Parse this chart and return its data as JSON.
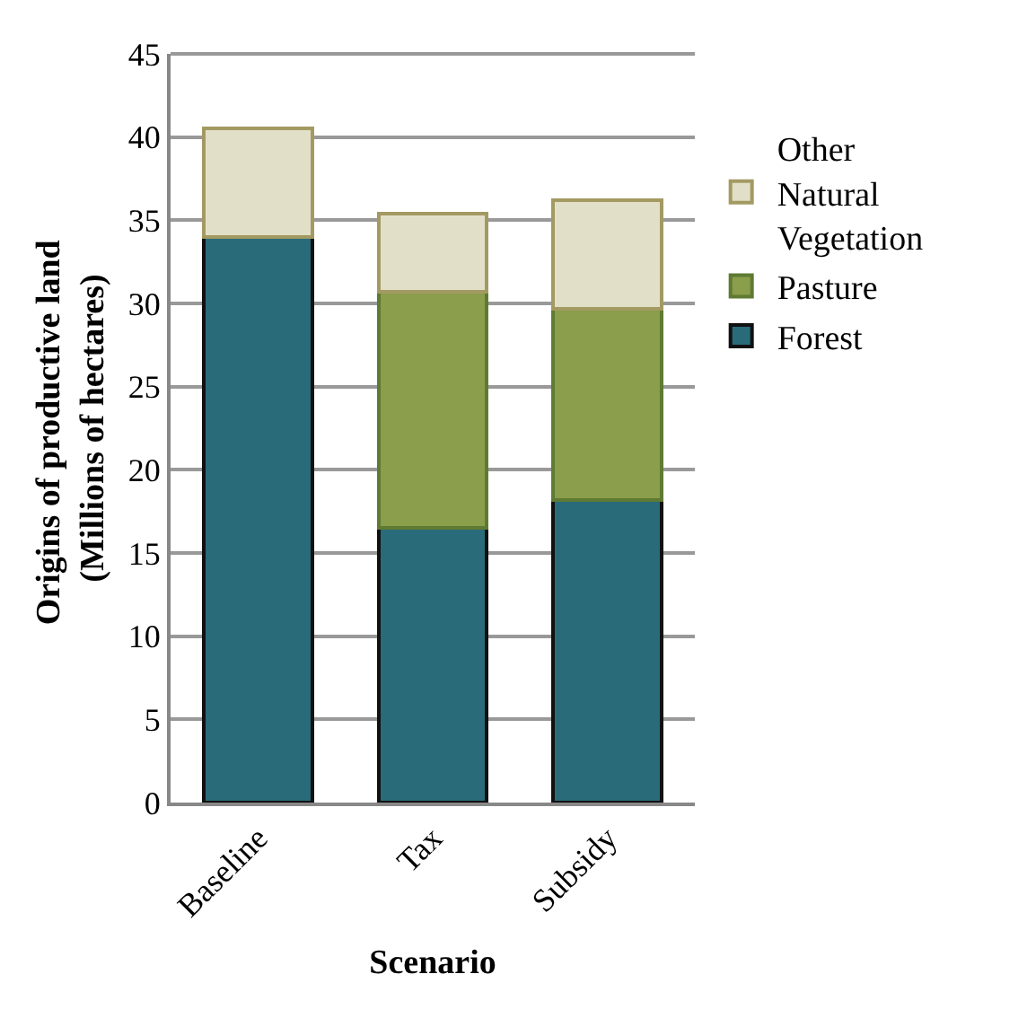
{
  "chart_data": {
    "type": "bar",
    "stacked": true,
    "xlabel": "Scenario",
    "ylabel": "Origins of productive land (Millions of hectares)",
    "categories": [
      "Baseline",
      "Tax",
      "Subsidy"
    ],
    "series": [
      {
        "name": "Forest",
        "color": "#2a6b7a",
        "values": [
          34.0,
          16.5,
          18.2
        ]
      },
      {
        "name": "Pasture",
        "color": "#8a9e4b",
        "values": [
          0,
          14.2,
          11.5
        ]
      },
      {
        "name": "Other Natural Vegetation",
        "color": "#e2dfc8",
        "values": [
          6.5,
          4.7,
          6.5
        ]
      }
    ],
    "ylim": [
      0,
      45
    ],
    "yticks": [
      0,
      5,
      10,
      15,
      20,
      25,
      30,
      35,
      40,
      45
    ],
    "grid": "y",
    "legend": "right"
  }
}
